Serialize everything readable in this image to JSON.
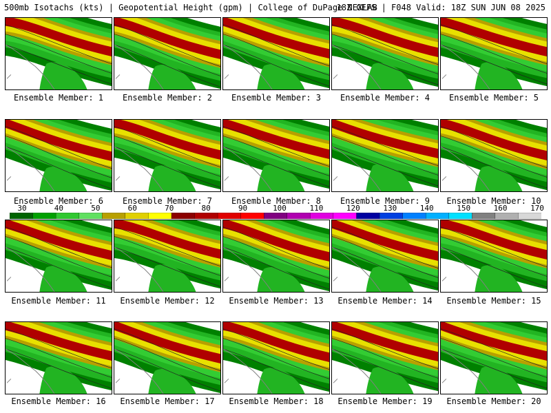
{
  "header": {
    "left": "500mb Isotachs (kts) | Geopotential Height (gpm) | College of DuPage NEXLAB",
    "right": "18Z GEFS | F048 Valid: 18Z SUN JUN 08 2025"
  },
  "colorbar": {
    "labels": [
      "30",
      "40",
      "50",
      "60",
      "70",
      "80",
      "90",
      "100",
      "110",
      "120",
      "130",
      "140",
      "150",
      "160",
      "170"
    ],
    "colors": [
      "#006400",
      "#00a000",
      "#30c830",
      "#60e060",
      "#b8a000",
      "#e0d000",
      "#ffff00",
      "#8b0000",
      "#b00000",
      "#e00000",
      "#ff0000",
      "#800080",
      "#b000b0",
      "#e000e0",
      "#ff00ff",
      "#0000a0",
      "#0040e0",
      "#0080ff",
      "#00b0ff",
      "#00e0ff",
      "#808080",
      "#b0b0b0",
      "#d8d8d8"
    ]
  },
  "panel_label_prefix": "Ensemble Member:",
  "members": [
    {
      "label": "Ensemble Member: 1"
    },
    {
      "label": "Ensemble Member: 2"
    },
    {
      "label": "Ensemble Member: 3"
    },
    {
      "label": "Ensemble Member: 4"
    },
    {
      "label": "Ensemble Member: 5"
    },
    {
      "label": "Ensemble Member: 6"
    },
    {
      "label": "Ensemble Member: 7"
    },
    {
      "label": "Ensemble Member: 8"
    },
    {
      "label": "Ensemble Member: 9"
    },
    {
      "label": "Ensemble Member: 10"
    },
    {
      "label": "Ensemble Member: 11"
    },
    {
      "label": "Ensemble Member: 12"
    },
    {
      "label": "Ensemble Member: 13"
    },
    {
      "label": "Ensemble Member: 14"
    },
    {
      "label": "Ensemble Member: 15"
    },
    {
      "label": "Ensemble Member: 16"
    },
    {
      "label": "Ensemble Member: 17"
    },
    {
      "label": "Ensemble Member: 18"
    },
    {
      "label": "Ensemble Member: 19"
    },
    {
      "label": "Ensemble Member: 20"
    }
  ],
  "field_colors": {
    "green_dark": "#008000",
    "green": "#22b422",
    "green_light": "#33cc33",
    "olive": "#b8a000",
    "yellow": "#e8e000",
    "red_dark": "#b00000",
    "coast": "#808080"
  }
}
